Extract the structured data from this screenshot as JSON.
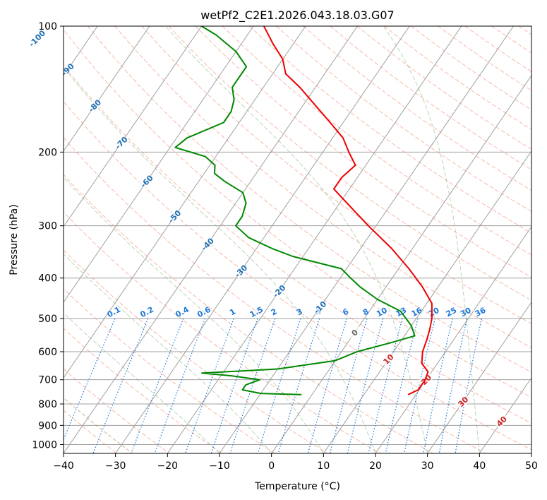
{
  "chart_data": {
    "type": "skew-t",
    "title": "wetPf2_C2E1.2026.043.18.03.G07",
    "xlabel": "Temperature (°C)",
    "ylabel": "Pressure (hPa)",
    "xlim": [
      -40,
      50
    ],
    "ylim_pressure": [
      1050,
      100
    ],
    "log_pressure_axis": true,
    "grid": true,
    "x_ticks": [
      -40,
      -30,
      -20,
      -10,
      0,
      10,
      20,
      30,
      40,
      50
    ],
    "x_tick_labels": [
      "−40",
      "−30",
      "−20",
      "−10",
      "0",
      "10",
      "20",
      "30",
      "40",
      "50"
    ],
    "y_ticks": [
      100,
      200,
      300,
      400,
      500,
      600,
      700,
      800,
      900,
      1000
    ],
    "y_tick_labels": [
      "100",
      "200",
      "300",
      "400",
      "500",
      "600",
      "700",
      "800",
      "900",
      "1000"
    ],
    "isotherm_labels": [
      {
        "t": -100,
        "p": 107,
        "text": "-100"
      },
      {
        "t": -90,
        "p": 127,
        "text": "-90"
      },
      {
        "t": -80,
        "p": 155,
        "text": "-80"
      },
      {
        "t": -70,
        "p": 190,
        "text": "-70"
      },
      {
        "t": -60,
        "p": 235,
        "text": "-60"
      },
      {
        "t": -50,
        "p": 285,
        "text": "-50"
      },
      {
        "t": -40,
        "p": 332,
        "text": "-40"
      },
      {
        "t": -30,
        "p": 385,
        "text": "-30"
      },
      {
        "t": -20,
        "p": 430,
        "text": "-20"
      },
      {
        "t": -10,
        "p": 470,
        "text": "-10"
      },
      {
        "t": 0,
        "p": 540,
        "text": "0"
      },
      {
        "t": 10,
        "p": 625,
        "text": "10"
      },
      {
        "t": 20,
        "p": 700,
        "text": "20"
      },
      {
        "t": 30,
        "p": 790,
        "text": "30"
      },
      {
        "t": 40,
        "p": 880,
        "text": "40"
      }
    ],
    "mixing_ratio_labels": [
      "0.1",
      "0.2",
      "0.4",
      "0.6",
      "1",
      "1.5",
      "2",
      "3",
      "4",
      "6",
      "8",
      "10",
      "13",
      "16",
      "20",
      "25",
      "30",
      "36"
    ],
    "mixing_ratio_values": [
      0.1,
      0.2,
      0.4,
      0.6,
      1,
      1.5,
      2,
      3,
      4,
      6,
      8,
      10,
      13,
      16,
      20,
      25,
      30,
      36
    ],
    "series": [
      {
        "kind": "temperature",
        "color": "#ee0000",
        "points": [
          {
            "p": 760,
            "t": 18.5
          },
          {
            "p": 740,
            "t": 19.8
          },
          {
            "p": 700,
            "t": 19.8
          },
          {
            "p": 670,
            "t": 19.3
          },
          {
            "p": 640,
            "t": 17.0
          },
          {
            "p": 600,
            "t": 15.6
          },
          {
            "p": 560,
            "t": 14.8
          },
          {
            "p": 530,
            "t": 14.0
          },
          {
            "p": 500,
            "t": 13.0
          },
          {
            "p": 460,
            "t": 11.0
          },
          {
            "p": 420,
            "t": 7.0
          },
          {
            "p": 380,
            "t": 2.0
          },
          {
            "p": 340,
            "t": -4.0
          },
          {
            "p": 300,
            "t": -11.5
          },
          {
            "p": 270,
            "t": -17.5
          },
          {
            "p": 245,
            "t": -23.0
          },
          {
            "p": 230,
            "t": -23.0
          },
          {
            "p": 215,
            "t": -22.0
          },
          {
            "p": 200,
            "t": -25.0
          },
          {
            "p": 185,
            "t": -28.0
          },
          {
            "p": 170,
            "t": -32.5
          },
          {
            "p": 155,
            "t": -37.5
          },
          {
            "p": 140,
            "t": -43.0
          },
          {
            "p": 130,
            "t": -47.5
          },
          {
            "p": 120,
            "t": -50.0
          },
          {
            "p": 110,
            "t": -54.0
          },
          {
            "p": 100,
            "t": -58.0
          }
        ]
      },
      {
        "kind": "dewpoint",
        "color": "#008800",
        "points": [
          {
            "p": 760,
            "t": -2.0
          },
          {
            "p": 755,
            "t": -10.0
          },
          {
            "p": 740,
            "t": -14.0
          },
          {
            "p": 720,
            "t": -14.0
          },
          {
            "p": 700,
            "t": -12.0
          },
          {
            "p": 685,
            "t": -18.0
          },
          {
            "p": 675,
            "t": -24.0
          },
          {
            "p": 660,
            "t": -10.0
          },
          {
            "p": 630,
            "t": 0.0
          },
          {
            "p": 600,
            "t": 3.0
          },
          {
            "p": 570,
            "t": 8.5
          },
          {
            "p": 550,
            "t": 12.0
          },
          {
            "p": 520,
            "t": 10.0
          },
          {
            "p": 480,
            "t": 6.0
          },
          {
            "p": 450,
            "t": 0.0
          },
          {
            "p": 420,
            "t": -5.0
          },
          {
            "p": 400,
            "t": -8.0
          },
          {
            "p": 380,
            "t": -11.0
          },
          {
            "p": 355,
            "t": -22.0
          },
          {
            "p": 340,
            "t": -27.0
          },
          {
            "p": 320,
            "t": -33.0
          },
          {
            "p": 300,
            "t": -37.0
          },
          {
            "p": 285,
            "t": -37.0
          },
          {
            "p": 265,
            "t": -38.0
          },
          {
            "p": 250,
            "t": -40.0
          },
          {
            "p": 235,
            "t": -45.0
          },
          {
            "p": 225,
            "t": -48.0
          },
          {
            "p": 215,
            "t": -49.0
          },
          {
            "p": 205,
            "t": -52.0
          },
          {
            "p": 195,
            "t": -59.0
          },
          {
            "p": 185,
            "t": -58.0
          },
          {
            "p": 170,
            "t": -53.0
          },
          {
            "p": 160,
            "t": -53.0
          },
          {
            "p": 150,
            "t": -54.0
          },
          {
            "p": 140,
            "t": -56.0
          },
          {
            "p": 125,
            "t": -56.0
          },
          {
            "p": 115,
            "t": -60.0
          },
          {
            "p": 105,
            "t": -66.0
          },
          {
            "p": 100,
            "t": -70.0
          }
        ]
      }
    ],
    "colors": {
      "isotherm": "#a0a0a0",
      "dry_adiabat": "#f08060",
      "moist_adiabat": "#5aa85a",
      "mixing_ratio": "#1e78d8",
      "isotherm_label_cold": "#1f6fb4",
      "isotherm_label_warm": "#cc2222",
      "isotherm_label_zero": "#666666",
      "left_arc": "#c8a070"
    }
  }
}
